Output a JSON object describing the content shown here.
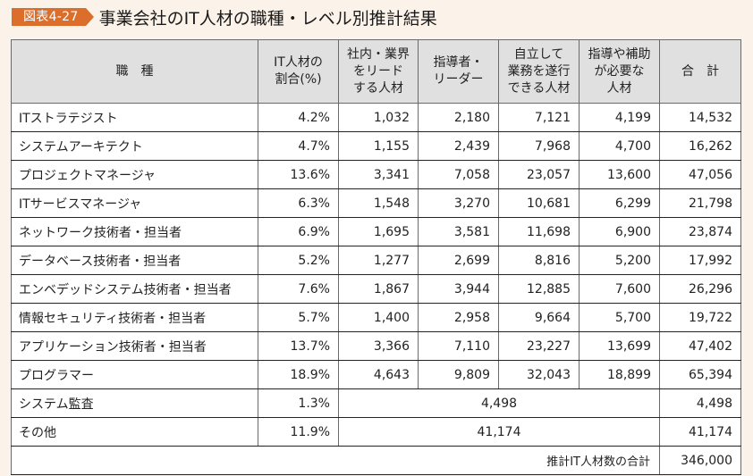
{
  "figure": {
    "badge": "図表4-27",
    "title": "事業会社のIT人材の職種・レベル別推計結果"
  },
  "table": {
    "headers": [
      "職　種",
      "IT人材の\n割合(%)",
      "社内・業界\nをリード\nする人材",
      "指導者・\nリーダー",
      "自立して\n業務を遂行\nできる人材",
      "指導や補助\nが必要な\n人材",
      "合　計"
    ],
    "rows": [
      {
        "name": "ITストラテジスト",
        "share": "4.2%",
        "lead": "1,032",
        "leader": "2,180",
        "independent": "7,121",
        "support": "4,199",
        "total": "14,532"
      },
      {
        "name": "システムアーキテクト",
        "share": "4.7%",
        "lead": "1,155",
        "leader": "2,439",
        "independent": "7,968",
        "support": "4,700",
        "total": "16,262"
      },
      {
        "name": "プロジェクトマネージャ",
        "share": "13.6%",
        "lead": "3,341",
        "leader": "7,058",
        "independent": "23,057",
        "support": "13,600",
        "total": "47,056"
      },
      {
        "name": "ITサービスマネージャ",
        "share": "6.3%",
        "lead": "1,548",
        "leader": "3,270",
        "independent": "10,681",
        "support": "6,299",
        "total": "21,798"
      },
      {
        "name": "ネットワーク技術者・担当者",
        "share": "6.9%",
        "lead": "1,695",
        "leader": "3,581",
        "independent": "11,698",
        "support": "6,900",
        "total": "23,874"
      },
      {
        "name": "データベース技術者・担当者",
        "share": "5.2%",
        "lead": "1,277",
        "leader": "2,699",
        "independent": "8,816",
        "support": "5,200",
        "total": "17,992"
      },
      {
        "name": "エンベデッドシステム技術者・担当者",
        "share": "7.6%",
        "lead": "1,867",
        "leader": "3,944",
        "independent": "12,885",
        "support": "7,600",
        "total": "26,296"
      },
      {
        "name": "情報セキュリティ技術者・担当者",
        "share": "5.7%",
        "lead": "1,400",
        "leader": "2,958",
        "independent": "9,664",
        "support": "5,700",
        "total": "19,722"
      },
      {
        "name": "アプリケーション技術者・担当者",
        "share": "13.7%",
        "lead": "3,366",
        "leader": "7,110",
        "independent": "23,227",
        "support": "13,699",
        "total": "47,402"
      },
      {
        "name": "プログラマー",
        "share": "18.9%",
        "lead": "4,643",
        "leader": "9,809",
        "independent": "32,043",
        "support": "18,899",
        "total": "65,394"
      }
    ],
    "merged_rows": [
      {
        "name": "システム監査",
        "share": "1.3%",
        "merged": "4,498",
        "total": "4,498"
      },
      {
        "name": "その他",
        "share": "11.9%",
        "merged": "41,174",
        "total": "41,174"
      }
    ],
    "grand_total": {
      "label": "推計IT人材数の合計",
      "value": "346,000"
    }
  }
}
